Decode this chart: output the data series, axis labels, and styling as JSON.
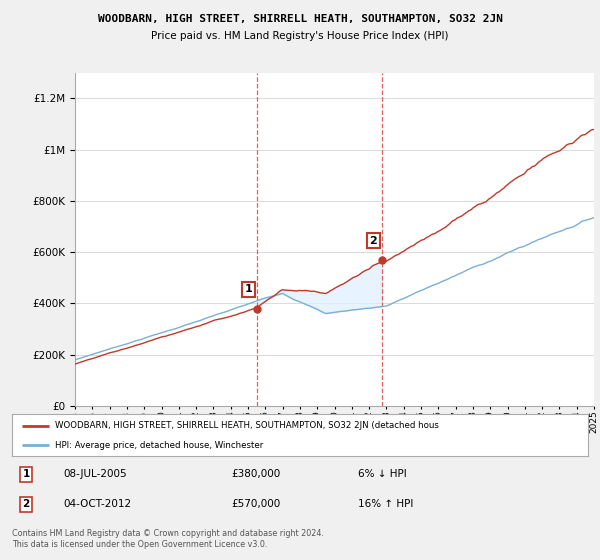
{
  "title": "WOODBARN, HIGH STREET, SHIRRELL HEATH, SOUTHAMPTON, SO32 2JN",
  "subtitle": "Price paid vs. HM Land Registry's House Price Index (HPI)",
  "ylim": [
    0,
    1300000
  ],
  "yticks": [
    0,
    200000,
    400000,
    600000,
    800000,
    1000000,
    1200000
  ],
  "xstart_year": 1995,
  "xend_year": 2025,
  "sale1_year": 2005.52,
  "sale1_price": 380000,
  "sale2_year": 2012.75,
  "sale2_price": 570000,
  "sale1_label": "08-JUL-2005",
  "sale2_label": "04-OCT-2012",
  "sale1_hpi": "6% ↓ HPI",
  "sale2_hpi": "16% ↑ HPI",
  "legend_line1": "WOODBARN, HIGH STREET, SHIRRELL HEATH, SOUTHAMPTON, SO32 2JN (detached hous",
  "legend_line2": "HPI: Average price, detached house, Winchester",
  "footnote": "Contains HM Land Registry data © Crown copyright and database right 2024.\nThis data is licensed under the Open Government Licence v3.0.",
  "line_color_hpi": "#7ab0d4",
  "line_color_price": "#c0392b",
  "shade_color": "#ddeeff",
  "background_color": "#f0f0f0",
  "plot_bg": "#ffffff",
  "grid_color": "#cccccc"
}
